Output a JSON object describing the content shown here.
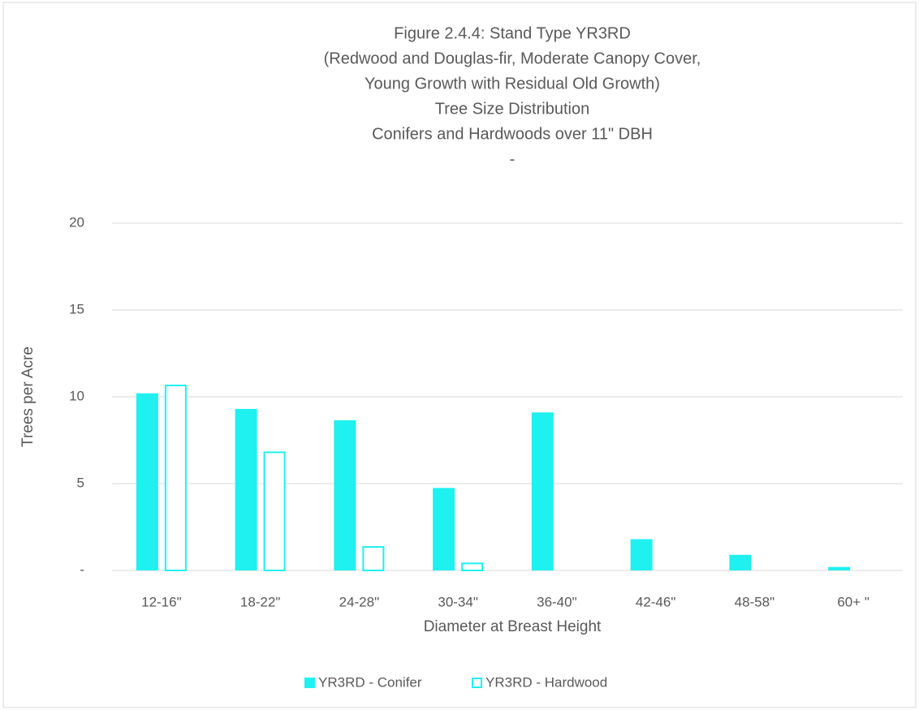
{
  "chart_data": {
    "type": "bar",
    "title": [
      "Figure 2.4.4: Stand Type YR3RD",
      "(Redwood and Douglas-fir, Moderate Canopy Cover,",
      "Young Growth with Residual Old Growth)",
      "Tree Size Distribution",
      "Conifers and Hardwoods over 11\" DBH",
      "-"
    ],
    "x_label": "Diameter at Breast Height",
    "y_label": "Trees per Acre",
    "categories": [
      "12-16\"",
      "18-22\"",
      "24-28\"",
      "30-34\"",
      "36-40\"",
      "42-46\"",
      "48-58\"",
      "60+ \""
    ],
    "series": [
      {
        "name": "YR3RD - Conifer",
        "color": "#1ff0f0",
        "values": [
          10.2,
          9.3,
          8.65,
          4.75,
          9.1,
          1.8,
          0.9,
          0.2
        ]
      },
      {
        "name": "YR3RD - Hardwood",
        "color": "#1ff0f0",
        "values": [
          10.7,
          6.85,
          1.4,
          0.45,
          0,
          0,
          0,
          0
        ]
      }
    ],
    "ylim": [
      0,
      20
    ],
    "yticks": [
      {
        "value": 0,
        "label": "-"
      },
      5,
      10,
      15,
      20
    ],
    "grid": true,
    "legend": "bottom"
  }
}
